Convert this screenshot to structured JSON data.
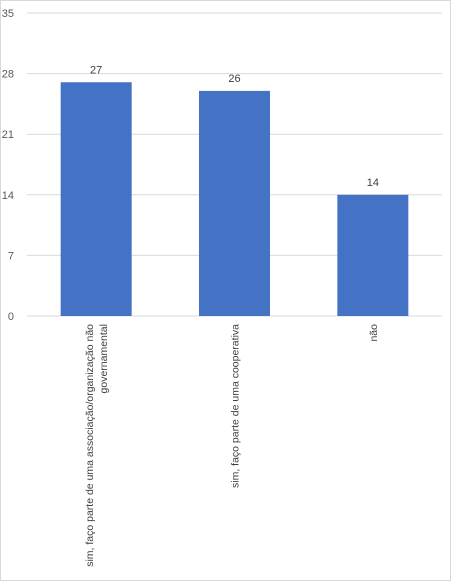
{
  "chart_data": {
    "type": "bar",
    "categories": [
      [
        "sim, faço parte de uma associação/organização não",
        "governamental"
      ],
      [
        "sim, faço parte de uma cooperativa"
      ],
      [
        "não"
      ]
    ],
    "values": [
      27,
      26,
      14
    ],
    "data_labels": [
      "27",
      "26",
      "14"
    ],
    "ylim": [
      0,
      35
    ],
    "yticks": [
      "0",
      "7",
      "14",
      "21",
      "28",
      "35"
    ],
    "grid": true,
    "bar_color": "#4472c4",
    "grid_color": "#d9d9d9"
  }
}
